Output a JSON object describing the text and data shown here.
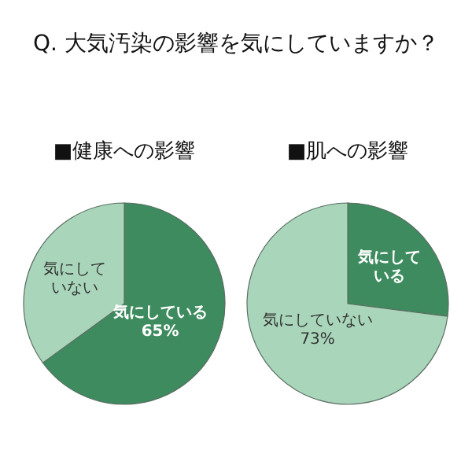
{
  "chart_data": [
    {
      "type": "pie",
      "title": "Q. 大気汚染の影響を気にしていますか？",
      "subtitle": "■健康への影響",
      "categories": [
        "気にしている",
        "気にしていない"
      ],
      "values": [
        65,
        35
      ],
      "colors": [
        "#3d8b5e",
        "#a9d6bb"
      ],
      "value_labels": [
        "65%",
        null
      ]
    },
    {
      "type": "pie",
      "subtitle": "■肌への影響",
      "categories": [
        "気にしている",
        "気にしていない"
      ],
      "values": [
        27,
        73
      ],
      "colors": [
        "#3d8b5e",
        "#a9d6bb"
      ],
      "value_labels": [
        null,
        "73%"
      ]
    }
  ]
}
